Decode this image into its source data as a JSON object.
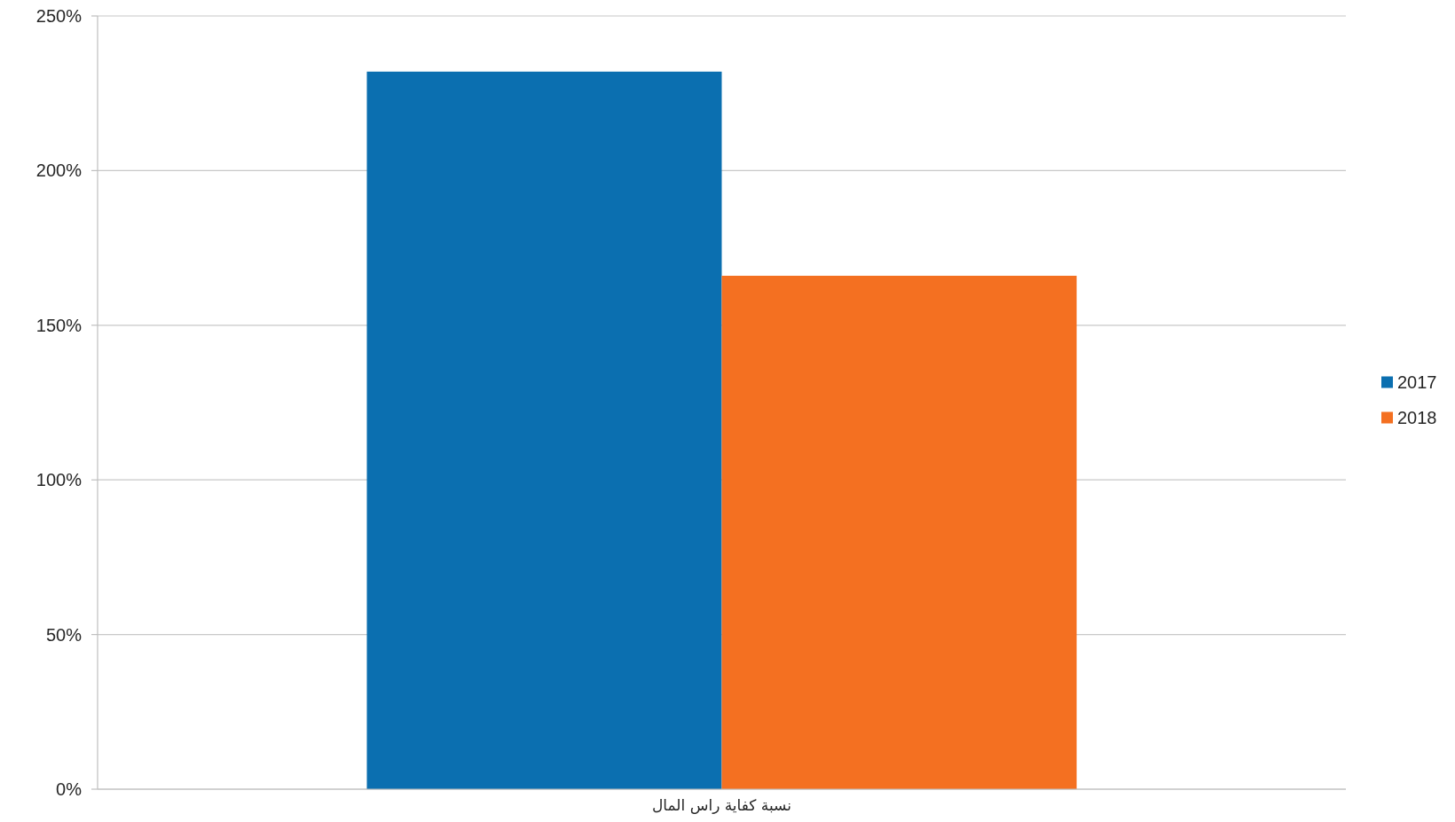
{
  "chart_data": {
    "type": "bar",
    "categories": [
      "نسبة كفاية راس المال"
    ],
    "series": [
      {
        "name": "2017",
        "color": "#0b6fb0",
        "values": [
          232
        ]
      },
      {
        "name": "2018",
        "color": "#f47021",
        "values": [
          166
        ]
      }
    ],
    "ylim": [
      0,
      250
    ],
    "yticks": [
      {
        "value": 0,
        "label": "0%"
      },
      {
        "value": 50,
        "label": "50%"
      },
      {
        "value": 100,
        "label": "100%"
      },
      {
        "value": 150,
        "label": "150%"
      },
      {
        "value": 200,
        "label": "200%"
      },
      {
        "value": 250,
        "label": "250%"
      }
    ],
    "grid": "y",
    "legend": "right"
  }
}
